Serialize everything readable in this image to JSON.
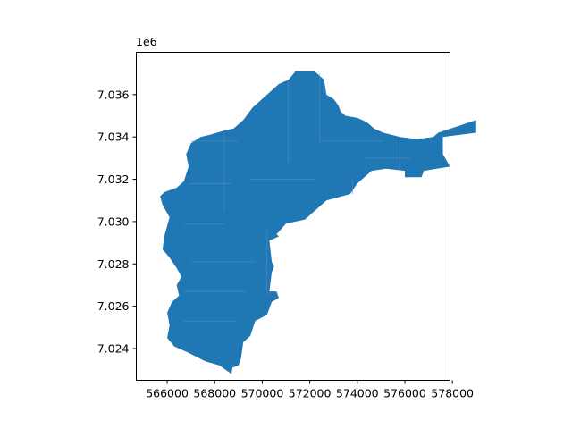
{
  "chart_data": {
    "type": "map-polygon",
    "title": "",
    "xlabel": "",
    "ylabel": "",
    "fill_color": "#1f77b4",
    "grid": false,
    "legend": null,
    "xlim": [
      564700,
      577900
    ],
    "ylim": [
      7022500,
      7038000
    ],
    "x_ticks": [
      {
        "value": 566000,
        "label": "566000"
      },
      {
        "value": 568000,
        "label": "568000"
      },
      {
        "value": 570000,
        "label": "570000"
      },
      {
        "value": 572000,
        "label": "572000"
      },
      {
        "value": 574000,
        "label": "574000"
      },
      {
        "value": 576000,
        "label": "576000"
      },
      {
        "value": 578000,
        "label": "578000"
      }
    ],
    "y_ticks": [
      {
        "value": 7024000,
        "label": "7.024"
      },
      {
        "value": 7026000,
        "label": "7.026"
      },
      {
        "value": 7028000,
        "label": "7.028"
      },
      {
        "value": 7030000,
        "label": "7.030"
      },
      {
        "value": 7032000,
        "label": "7.032"
      },
      {
        "value": 7034000,
        "label": "7.034"
      },
      {
        "value": 7036000,
        "label": "7.036"
      }
    ],
    "y_offset_label": "1e6",
    "outline": [
      [
        568700,
        7022800
      ],
      [
        568750,
        7023100
      ],
      [
        569000,
        7023200
      ],
      [
        569100,
        7023500
      ],
      [
        569200,
        7024300
      ],
      [
        569500,
        7024600
      ],
      [
        569700,
        7025300
      ],
      [
        570200,
        7025600
      ],
      [
        570400,
        7026200
      ],
      [
        570700,
        7026400
      ],
      [
        570600,
        7026700
      ],
      [
        570300,
        7026700
      ],
      [
        570400,
        7027600
      ],
      [
        570500,
        7027900
      ],
      [
        570400,
        7028100
      ],
      [
        570300,
        7029100
      ],
      [
        570700,
        7029300
      ],
      [
        570600,
        7029400
      ],
      [
        571000,
        7029900
      ],
      [
        571800,
        7030100
      ],
      [
        572700,
        7031000
      ],
      [
        573700,
        7031300
      ],
      [
        574000,
        7031800
      ],
      [
        574600,
        7032400
      ],
      [
        575200,
        7032500
      ],
      [
        576000,
        7032400
      ],
      [
        576000,
        7032100
      ],
      [
        576700,
        7032100
      ],
      [
        576800,
        7032400
      ],
      [
        577900,
        7032600
      ],
      [
        577600,
        7033200
      ],
      [
        577600,
        7034000
      ],
      [
        579000,
        7034200
      ],
      [
        579000,
        7034800
      ],
      [
        577400,
        7034200
      ],
      [
        577200,
        7034000
      ],
      [
        576500,
        7033900
      ],
      [
        575800,
        7034000
      ],
      [
        575100,
        7034200
      ],
      [
        574700,
        7034400
      ],
      [
        574400,
        7034700
      ],
      [
        574000,
        7034900
      ],
      [
        573500,
        7035000
      ],
      [
        573300,
        7035200
      ],
      [
        573200,
        7035500
      ],
      [
        573000,
        7035800
      ],
      [
        572700,
        7036000
      ],
      [
        572600,
        7036700
      ],
      [
        572200,
        7037100
      ],
      [
        571400,
        7037100
      ],
      [
        571100,
        7036700
      ],
      [
        570700,
        7036500
      ],
      [
        570300,
        7036100
      ],
      [
        569900,
        7035700
      ],
      [
        569600,
        7035400
      ],
      [
        569200,
        7034800
      ],
      [
        568800,
        7034400
      ],
      [
        568400,
        7034300
      ],
      [
        567800,
        7034100
      ],
      [
        567400,
        7034000
      ],
      [
        567000,
        7033700
      ],
      [
        566800,
        7033200
      ],
      [
        566900,
        7032600
      ],
      [
        566700,
        7031900
      ],
      [
        566400,
        7031600
      ],
      [
        565900,
        7031400
      ],
      [
        565700,
        7031200
      ],
      [
        565800,
        7030800
      ],
      [
        566100,
        7030200
      ],
      [
        565900,
        7029400
      ],
      [
        565800,
        7028700
      ],
      [
        566100,
        7028300
      ],
      [
        566400,
        7027800
      ],
      [
        566600,
        7027400
      ],
      [
        566400,
        7027000
      ],
      [
        566500,
        7026500
      ],
      [
        566200,
        7026200
      ],
      [
        566000,
        7025700
      ],
      [
        566100,
        7025100
      ],
      [
        566000,
        7024500
      ],
      [
        566300,
        7024100
      ],
      [
        566900,
        7023800
      ],
      [
        567600,
        7023400
      ],
      [
        568200,
        7023200
      ]
    ],
    "internal_lines": [
      [
        [
          567000,
          7033800
        ],
        [
          569000,
          7033800
        ]
      ],
      [
        [
          566900,
          7031800
        ],
        [
          568700,
          7031800
        ]
      ],
      [
        [
          566700,
          7029900
        ],
        [
          568400,
          7029900
        ]
      ],
      [
        [
          567000,
          7028100
        ],
        [
          569700,
          7028100
        ]
      ],
      [
        [
          566700,
          7026700
        ],
        [
          569300,
          7026700
        ]
      ],
      [
        [
          566700,
          7025300
        ],
        [
          568900,
          7025300
        ]
      ],
      [
        [
          568400,
          7034200
        ],
        [
          568400,
          7030500
        ]
      ],
      [
        [
          570200,
          7029600
        ],
        [
          570200,
          7026500
        ]
      ],
      [
        [
          571100,
          7036600
        ],
        [
          571100,
          7032800
        ]
      ],
      [
        [
          572400,
          7037000
        ],
        [
          572400,
          7033800
        ]
      ],
      [
        [
          572400,
          7033800
        ],
        [
          575100,
          7033800
        ]
      ],
      [
        [
          574300,
          7033000
        ],
        [
          576200,
          7033000
        ]
      ],
      [
        [
          573800,
          7032000
        ],
        [
          573800,
          7031300
        ]
      ],
      [
        [
          575800,
          7032400
        ],
        [
          575800,
          7033900
        ]
      ],
      [
        [
          569500,
          7032000
        ],
        [
          572200,
          7032000
        ]
      ]
    ]
  }
}
